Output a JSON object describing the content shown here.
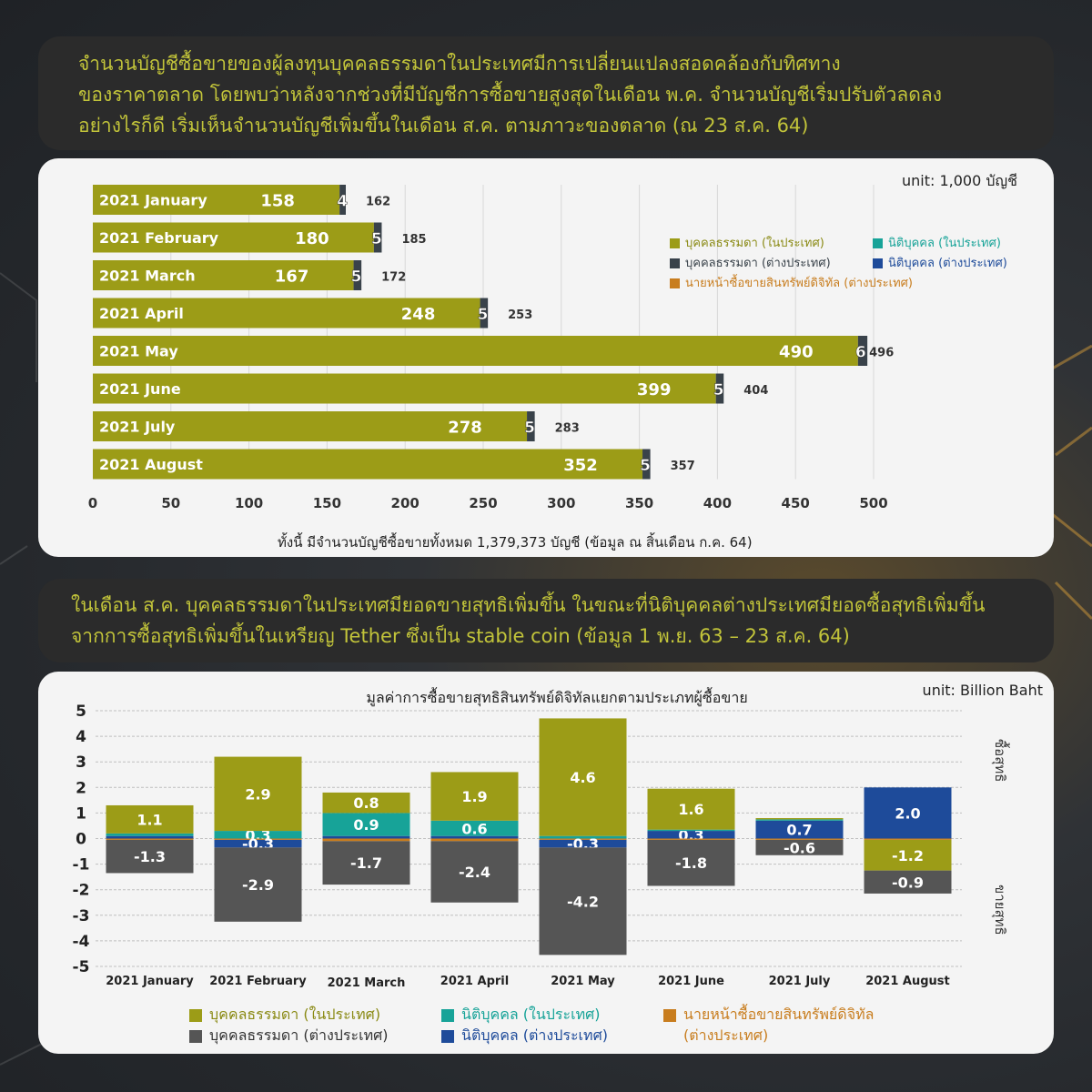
{
  "colors": {
    "thai_individual": "#9c9c17",
    "foreign_individual": "#39424a",
    "thai_juristic": "#17a398",
    "foreign_juristic": "#1e4b9a",
    "digital_broker": "#c87d1e",
    "headline": "#c2c43a",
    "bar_dark": "#555555"
  },
  "section1": {
    "headline": [
      "จำนวนบัญชีซื้อขายของผู้ลงทุนบุคคลธรรมดาในประเทศมีการเปลี่ยนแปลงสอดคล้องกับทิศทาง",
      "ของราคาตลาด โดยพบว่าหลังจากช่วงที่มีบัญชีการซื้อขายสูงสุดในเดือน พ.ค.  จำนวนบัญชีเริ่มปรับตัวลดลง",
      "อย่างไรก็ดี เริ่มเห็นจำนวนบัญชีเพิ่มขึ้นในเดือน ส.ค. ตามภาวะของตลาด (ณ 23 ส.ค. 64)"
    ],
    "unit": "unit: 1,000 บัญชี",
    "footnote": "ทั้งนี้ มีจำนวนบัญชีซื้อขายทั้งหมด 1,379,373 บัญชี (ข้อมูล ณ สิ้นเดือน ก.ค. 64)",
    "legend": [
      {
        "label": "บุคคลธรรมดา (ในประเทศ)",
        "color": "#9c9c17"
      },
      {
        "label": "นิติบุคคล (ในประเทศ)",
        "color": "#17a398"
      },
      {
        "label": "บุคคลธรรมดา (ต่างประเทศ)",
        "color": "#39424a"
      },
      {
        "label": "นิติบุคคล (ต่างประเทศ)",
        "color": "#1e4b9a"
      },
      {
        "label": "นายหน้าซื้อขายสินทรัพย์ดิจิทัล (ต่างประเทศ)",
        "color": "#c87d1e"
      }
    ]
  },
  "section2": {
    "headline": [
      "ในเดือน ส.ค. บุคคลธรรมดาในประเทศมียอดขายสุทธิเพิ่มขึ้น ในขณะที่นิติบุคคลต่างประเทศมียอดซื้อสุทธิเพิ่มขึ้น",
      "จากการซื้อสุทธิเพิ่มขึ้นในเหรียญ Tether ซึ่งเป็น stable coin (ข้อมูล 1 พ.ย. 63 – 23 ส.ค. 64)"
    ],
    "unit": "unit: Billion Baht",
    "net_buy_label": "ซื้อสุทธิ",
    "net_sell_label": "ขายสุทธิ",
    "legend": [
      {
        "label": "บุคคลธรรมดา (ในประเทศ)",
        "color": "#9c9c17"
      },
      {
        "label": "นิติบุคคล (ในประเทศ)",
        "color": "#17a398"
      },
      {
        "label": "นายหน้าซื้อขายสินทรัพย์ดิจิทัล",
        "color": "#c87d1e"
      },
      {
        "label": "บุคคลธรรมดา (ต่างประเทศ)",
        "color": "#555555"
      },
      {
        "label": "นิติบุคคล (ต่างประเทศ)",
        "color": "#1e4b9a"
      },
      {
        "label": "(ต่างประเทศ)",
        "color": ""
      }
    ]
  },
  "chart_data": [
    {
      "type": "bar",
      "orientation": "horizontal",
      "stacked": true,
      "unit": "1,000 บัญชี",
      "categories": [
        "2021 January",
        "2021 February",
        "2021 March",
        "2021 April",
        "2021 May",
        "2021 June",
        "2021 July",
        "2021 August"
      ],
      "series": [
        {
          "name": "บุคคลธรรมดา (ในประเทศ)",
          "values": [
            158,
            180,
            167,
            248,
            490,
            399,
            278,
            352
          ]
        },
        {
          "name": "บุคคลธรรมดา (ต่างประเทศ)",
          "values": [
            4,
            5,
            5,
            5,
            6,
            5,
            5,
            5
          ]
        }
      ],
      "totals": [
        162,
        185,
        172,
        253,
        496,
        404,
        283,
        357
      ],
      "xlim": [
        0,
        500
      ],
      "xticks": [
        0,
        50,
        100,
        150,
        200,
        250,
        300,
        350,
        400,
        450,
        500
      ],
      "grid": true
    },
    {
      "type": "bar",
      "orientation": "vertical",
      "stacked": true,
      "title": "มูลค่าการซื้อขายสุทธิสินทรัพย์ดิจิทัลแยกตามประเภทผู้ซื้อขาย",
      "unit": "Billion Baht",
      "categories": [
        "2021 January",
        "2021 February",
        "2021 March",
        "2021 April",
        "2021 May",
        "2021 June",
        "2021 July",
        "2021 August"
      ],
      "series": [
        {
          "name": "บุคคลธรรมดา (ในประเทศ)",
          "values": [
            1.1,
            2.9,
            0.8,
            1.9,
            4.6,
            1.6,
            0.05,
            -1.2
          ]
        },
        {
          "name": "นิติบุคคล (ในประเทศ)",
          "values": [
            0.1,
            0.3,
            0.9,
            0.6,
            0.1,
            0.05,
            0.05,
            0.0
          ]
        },
        {
          "name": "นายหน้าซื้อขายสินทรัพย์ดิจิทัล (ต่างประเทศ)",
          "values": [
            -0.05,
            -0.05,
            -0.1,
            -0.1,
            -0.05,
            -0.05,
            -0.05,
            -0.05
          ]
        },
        {
          "name": "บุคคลธรรมดา (ต่างประเทศ)",
          "values": [
            -1.3,
            -2.9,
            -1.7,
            -2.4,
            -4.2,
            -1.8,
            -0.6,
            -0.9
          ]
        },
        {
          "name": "นิติบุคคล (ต่างประเทศ)",
          "values": [
            0.1,
            -0.3,
            0.1,
            0.1,
            -0.3,
            0.3,
            0.7,
            2.0
          ]
        }
      ],
      "value_labels": [
        [
          "1.1",
          "",
          "",
          "-1.3",
          ""
        ],
        [
          "2.9",
          "0.3",
          "",
          "-2.9",
          "-0.3"
        ],
        [
          "0.8",
          "0.9",
          "",
          "-1.7",
          ""
        ],
        [
          "1.9",
          "0.6",
          "",
          "-2.4",
          ""
        ],
        [
          "4.6",
          "",
          "",
          "-4.2",
          "-0.3"
        ],
        [
          "1.6",
          "",
          "",
          "-1.8",
          "0.3"
        ],
        [
          "",
          "",
          "",
          "-0.6",
          "0.7"
        ],
        [
          "-1.2",
          "",
          "",
          "-0.9",
          "2.0"
        ]
      ],
      "ylim": [
        -5,
        5
      ],
      "yticks": [
        -5,
        -4,
        -3,
        -2,
        -1,
        0,
        1,
        2,
        3,
        4,
        5
      ],
      "grid": true,
      "legend_position": "bottom"
    }
  ]
}
